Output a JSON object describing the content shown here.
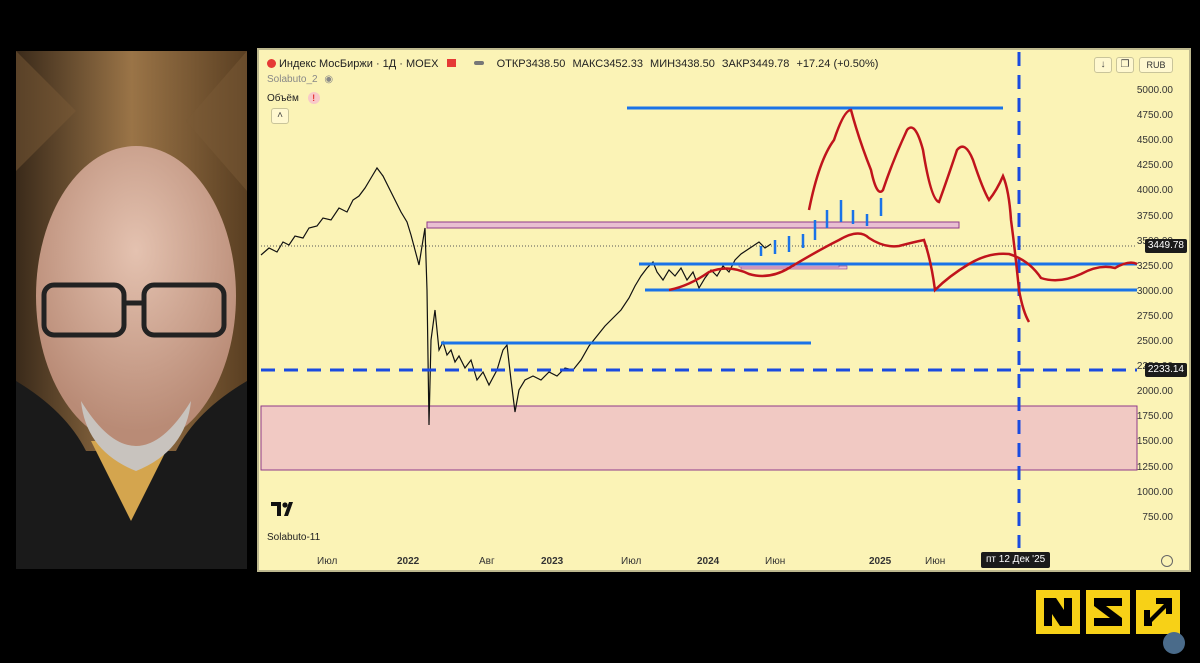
{
  "chart": {
    "title": "Индекс МосБиржи · 1Д · MOEX",
    "ohlc": {
      "open": "ОТКР3438.50",
      "high": "МАКС3452.33",
      "low": "МИН3438.50",
      "close": "ЗАКР3449.78",
      "change": "+17.24 (+0.50%)"
    },
    "indicator1": "Solabuto_2",
    "indicator2": "Объём",
    "indicator_bottom": "Solabuto-11",
    "currency": "RUB",
    "price_tag_current": "3449.78",
    "price_tag_line": "2233.14",
    "date_tag": "пт 12 Дек '25",
    "y_ticks": [
      "5000.00",
      "4750.00",
      "4500.00",
      "4250.00",
      "4000.00",
      "3750.00",
      "3500.00",
      "3250.00",
      "3000.00",
      "2750.00",
      "2500.00",
      "2250.00",
      "2000.00",
      "1750.00",
      "1500.00",
      "1250.00",
      "1000.00",
      "750.00"
    ],
    "x_ticks": [
      {
        "label": "Июл",
        "bold": false
      },
      {
        "label": "2022",
        "bold": true
      },
      {
        "label": "Авг",
        "bold": false
      },
      {
        "label": "2023",
        "bold": true
      },
      {
        "label": "Июл",
        "bold": false
      },
      {
        "label": "2024",
        "bold": true
      },
      {
        "label": "Июн",
        "bold": false
      },
      {
        "label": "2025",
        "bold": true
      },
      {
        "label": "Июн",
        "bold": false
      }
    ],
    "colors": {
      "background": "#fbf3b6",
      "blue_line": "#1a73e8",
      "red_line": "#c0141c",
      "zone": "#f1c9c3",
      "zone_border": "#8e3a8a"
    }
  },
  "brand_logo": {
    "letters": "NSA"
  }
}
